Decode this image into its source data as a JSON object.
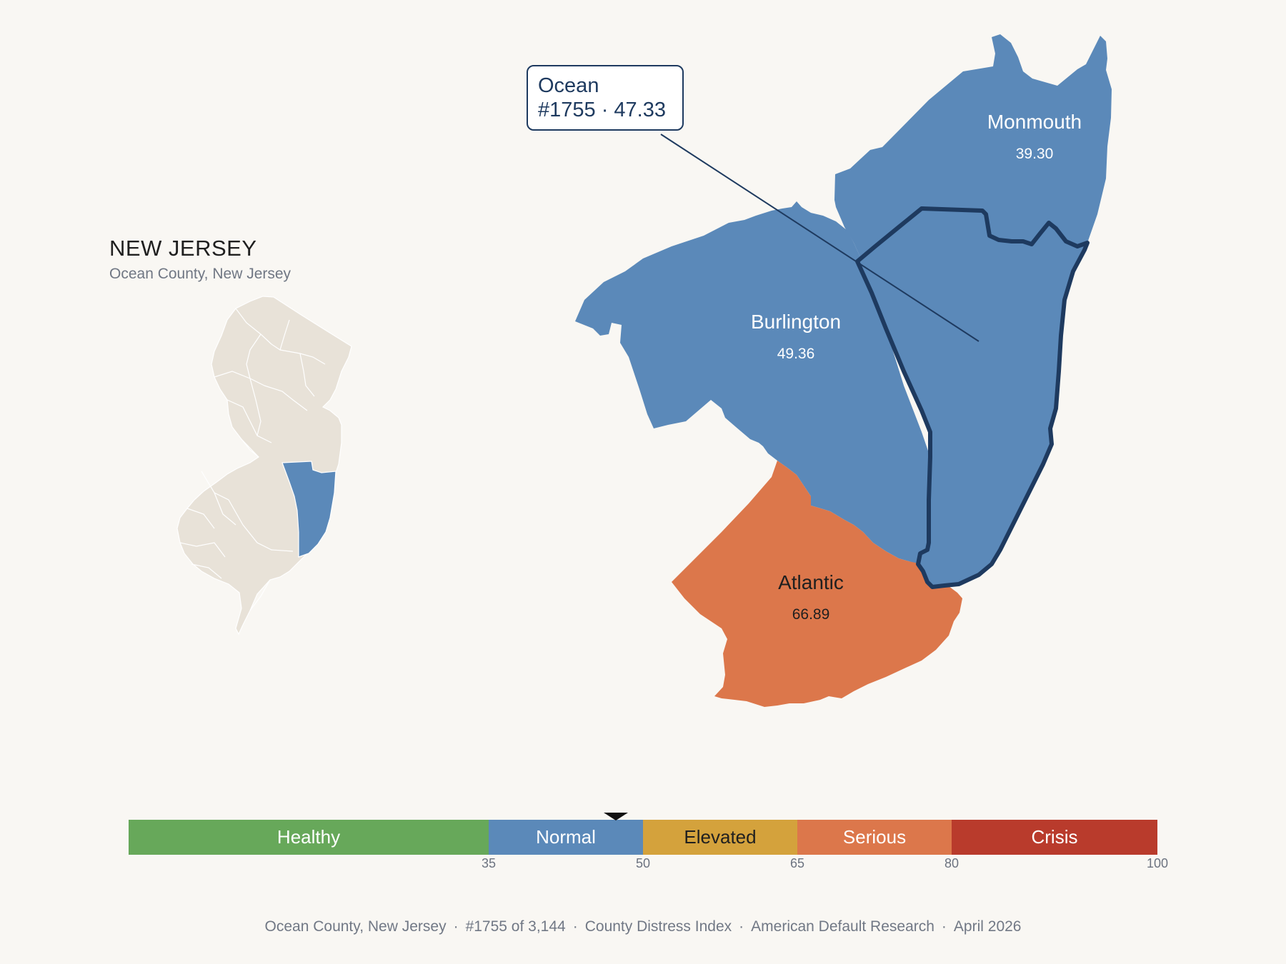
{
  "state": {
    "title": "NEW JERSEY",
    "subtitle": "Ocean County, New Jersey"
  },
  "focus": {
    "name": "Ocean",
    "detail": "#1755 · 47.33",
    "rank": 1755,
    "score": 47.33
  },
  "neighbors": [
    {
      "name": "Monmouth",
      "value": "39.30",
      "category": "Normal"
    },
    {
      "name": "Burlington",
      "value": "49.36",
      "category": "Normal"
    },
    {
      "name": "Atlantic",
      "value": "66.89",
      "category": "Serious"
    }
  ],
  "scale": {
    "min": 0,
    "max": 100,
    "marker_value": 47.33,
    "categories": [
      {
        "label": "Healthy",
        "from": 0,
        "to": 35,
        "color": "#67a85a",
        "text_color": "#ffffff"
      },
      {
        "label": "Normal",
        "from": 35,
        "to": 50,
        "color": "#5b89b9",
        "text_color": "#ffffff"
      },
      {
        "label": "Elevated",
        "from": 50,
        "to": 65,
        "color": "#d4a23c",
        "text_color": "#1f1f1f"
      },
      {
        "label": "Serious",
        "from": 65,
        "to": 80,
        "color": "#dc774b",
        "text_color": "#ffffff"
      },
      {
        "label": "Crisis",
        "from": 80,
        "to": 100,
        "color": "#b93b2c",
        "text_color": "#ffffff"
      }
    ],
    "ticks": [
      "35",
      "50",
      "65",
      "80",
      "100"
    ]
  },
  "colors": {
    "normal": "#5b89b9",
    "serious": "#dc774b",
    "outline": "#1e3a5f",
    "inset_base": "#e8e2d8",
    "background": "#f9f7f3"
  },
  "footer": {
    "county": "Ocean County, New Jersey",
    "rank": "#1755 of 3,144",
    "index": "County Distress Index",
    "source": "American Default Research",
    "date": "April 2026"
  }
}
